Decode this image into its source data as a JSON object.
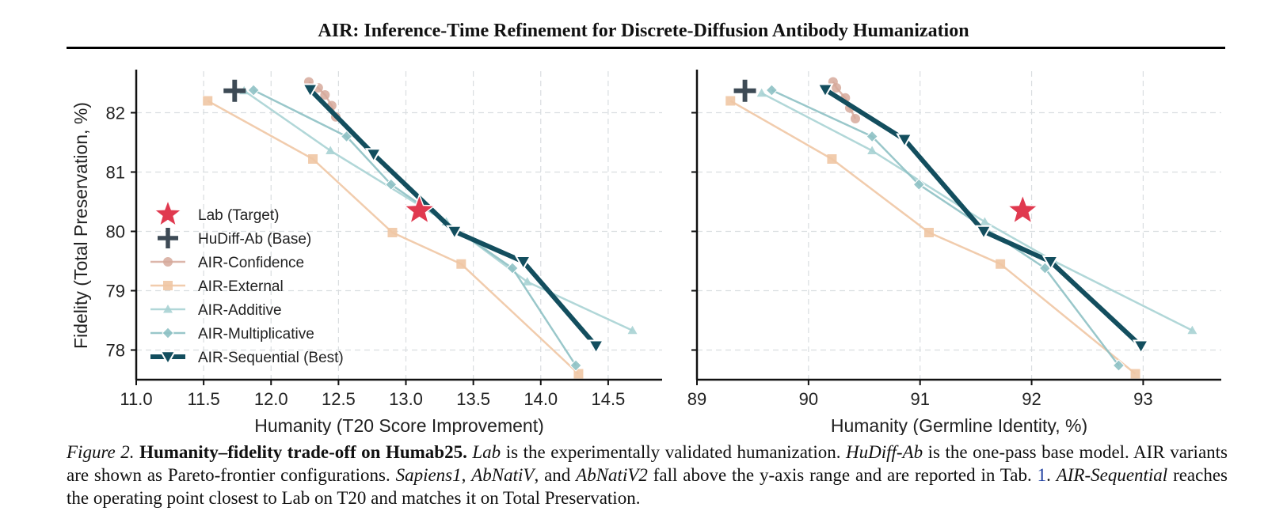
{
  "header": {
    "title": "AIR: Inference-Time Refinement for Discrete-Diffusion Antibody Humanization"
  },
  "colors": {
    "lab": "#e0394f",
    "base": "#3d4a55",
    "confidence": "#d6a99b",
    "external": "#f0c7a4",
    "additive": "#a9d3d4",
    "multiplicative": "#8ec1c4",
    "sequential": "#134e5e",
    "grid": "#d9dde0"
  },
  "chart_data": [
    {
      "type": "line",
      "xlabel": "Humanity (T20 Score Improvement)",
      "ylabel": "Fidelity (Total Preservation, %)",
      "xlim": [
        11.0,
        14.9
      ],
      "ylim": [
        77.5,
        82.7
      ],
      "xticks": [
        "11.0",
        "11.5",
        "12.0",
        "12.5",
        "13.0",
        "13.5",
        "14.0",
        "14.5"
      ],
      "yticks": [
        "78",
        "79",
        "80",
        "81",
        "82"
      ],
      "grid": true,
      "legend": "center-left",
      "series": [
        {
          "name": "Lab (Target)",
          "marker": "star",
          "points": [
            [
              13.1,
              80.35
            ]
          ]
        },
        {
          "name": "HuDiff-Ab (Base)",
          "marker": "plus",
          "points": [
            [
              11.73,
              82.37
            ]
          ]
        },
        {
          "name": "AIR-Confidence",
          "marker": "circle",
          "points": [
            [
              12.28,
              82.52
            ],
            [
              12.35,
              82.42
            ],
            [
              12.4,
              82.3
            ],
            [
              12.45,
              82.12
            ],
            [
              12.48,
              81.93
            ]
          ]
        },
        {
          "name": "AIR-External",
          "marker": "square",
          "points": [
            [
              11.53,
              82.2
            ],
            [
              12.31,
              81.22
            ],
            [
              12.9,
              79.98
            ],
            [
              13.41,
              79.45
            ],
            [
              14.28,
              77.6
            ]
          ]
        },
        {
          "name": "AIR-Additive",
          "marker": "triangle-up",
          "points": [
            [
              11.8,
              82.37
            ],
            [
              12.44,
              81.36
            ],
            [
              13.3,
              80.16
            ],
            [
              13.9,
              79.15
            ],
            [
              14.68,
              78.33
            ]
          ]
        },
        {
          "name": "AIR-Multiplicative",
          "marker": "diamond",
          "points": [
            [
              11.87,
              82.38
            ],
            [
              12.56,
              81.6
            ],
            [
              12.89,
              80.79
            ],
            [
              13.79,
              79.38
            ],
            [
              14.26,
              77.74
            ]
          ]
        },
        {
          "name": "AIR-Sequential (Best)",
          "marker": "triangle-down",
          "points": [
            [
              12.29,
              82.39
            ],
            [
              12.76,
              81.3
            ],
            [
              13.36,
              80.0
            ],
            [
              13.87,
              79.49
            ],
            [
              14.41,
              78.07
            ]
          ]
        }
      ]
    },
    {
      "type": "line",
      "xlabel": "Humanity (Germline Identity, %)",
      "ylabel": "",
      "xlim": [
        89.0,
        93.7
      ],
      "ylim": [
        77.5,
        82.7
      ],
      "xticks": [
        "89",
        "90",
        "91",
        "92",
        "93"
      ],
      "yticks": [],
      "grid": true,
      "series": [
        {
          "name": "Lab (Target)",
          "marker": "star",
          "points": [
            [
              91.92,
              80.35
            ]
          ]
        },
        {
          "name": "HuDiff-Ab (Base)",
          "marker": "plus",
          "points": [
            [
              89.43,
              82.37
            ]
          ]
        },
        {
          "name": "AIR-Confidence",
          "marker": "circle",
          "points": [
            [
              90.22,
              82.52
            ],
            [
              90.25,
              82.42
            ],
            [
              90.33,
              82.25
            ],
            [
              90.37,
              82.08
            ],
            [
              90.42,
              81.9
            ]
          ]
        },
        {
          "name": "AIR-External",
          "marker": "square",
          "points": [
            [
              89.3,
              82.2
            ],
            [
              90.21,
              81.22
            ],
            [
              91.08,
              79.98
            ],
            [
              91.72,
              79.45
            ],
            [
              92.93,
              77.6
            ]
          ]
        },
        {
          "name": "AIR-Additive",
          "marker": "triangle-up",
          "points": [
            [
              89.58,
              82.33
            ],
            [
              90.57,
              81.36
            ],
            [
              91.58,
              80.16
            ],
            [
              92.2,
              79.5
            ],
            [
              93.44,
              78.33
            ]
          ]
        },
        {
          "name": "AIR-Multiplicative",
          "marker": "diamond",
          "points": [
            [
              89.67,
              82.38
            ],
            [
              90.57,
              81.6
            ],
            [
              90.99,
              80.79
            ],
            [
              92.12,
              79.38
            ],
            [
              92.78,
              77.74
            ]
          ]
        },
        {
          "name": "AIR-Sequential (Best)",
          "marker": "triangle-down",
          "points": [
            [
              90.15,
              82.39
            ],
            [
              90.86,
              81.55
            ],
            [
              91.57,
              80.0
            ],
            [
              92.17,
              79.49
            ],
            [
              92.98,
              78.07
            ]
          ]
        }
      ]
    }
  ],
  "caption": {
    "label": "Figure 2.",
    "heading": "Humanity–fidelity trade-off on Humab25.",
    "s1_em": "Lab",
    "s1_rest": "is the experimentally validated humanization.",
    "s2_em": "HuDiff-Ab",
    "s2_rest": "is the one-pass base model. AIR variants are shown as Pareto-frontier configurations.",
    "m1": "Sapiens1",
    "m2": "AbNatiV",
    "and": ", and",
    "m3": "AbNatiV2",
    "s3_rest": "fall above the y-axis range and are reported in Tab.",
    "tab_ref": "1",
    "s4_em": "AIR-Sequential",
    "s4_rest": "reaches the operating point closest to Lab on T20 and matches it on Total Preservation."
  }
}
